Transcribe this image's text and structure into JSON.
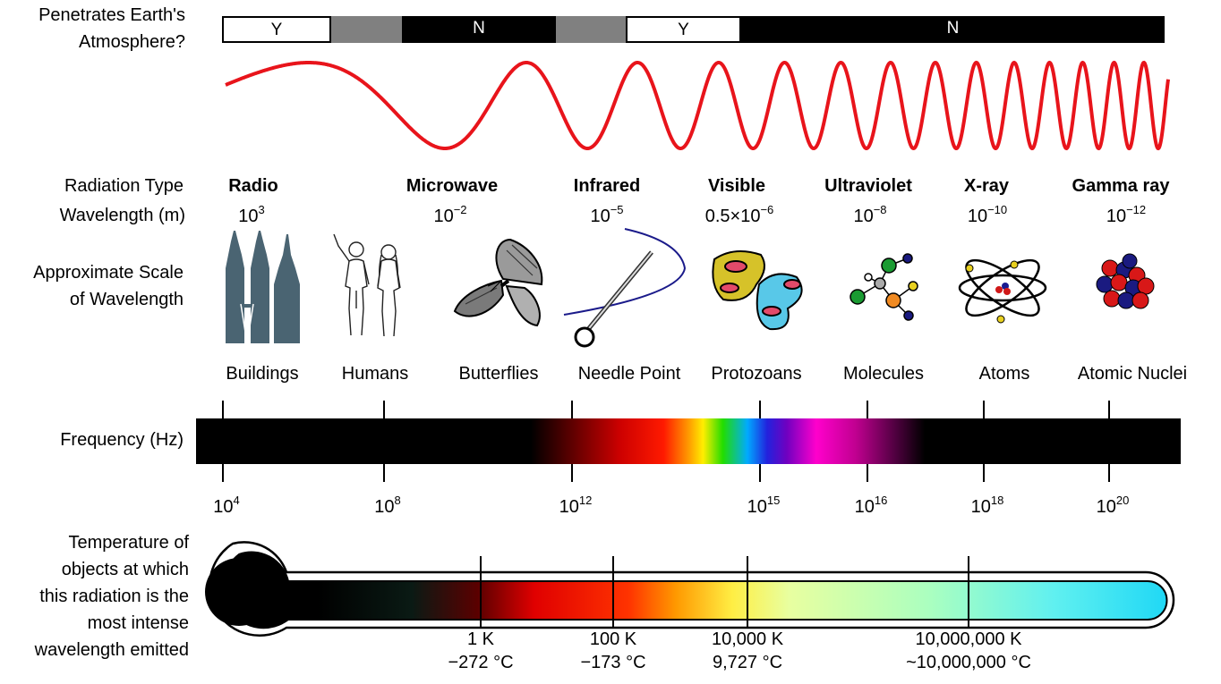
{
  "penetration": {
    "title_line1": "Penetrates Earth's",
    "title_line2": "Atmosphere?",
    "segments": [
      {
        "state": "Y",
        "label": "Y"
      },
      {
        "state": "P",
        "label": ""
      },
      {
        "state": "N",
        "label": "N"
      },
      {
        "state": "P",
        "label": ""
      },
      {
        "state": "Y",
        "label": "Y"
      },
      {
        "state": "N",
        "label": "N"
      }
    ]
  },
  "row_labels": {
    "radiation_type": "Radiation Type",
    "wavelength": "Wavelength (m)",
    "scale_line1": "Approximate Scale",
    "scale_line2": "of Wavelength",
    "frequency": "Frequency (Hz)",
    "temp_line1": "Temperature of",
    "temp_line2": "objects at which",
    "temp_line3": "this radiation is the",
    "temp_line4": "most intense",
    "temp_line5": "wavelength emitted"
  },
  "radiation_types": [
    {
      "name": "Radio",
      "wl_base": "10",
      "wl_exp": "3",
      "scale": "Buildings",
      "icon": "buildings-icon"
    },
    {
      "name": "Microwave",
      "wl_base": "10",
      "wl_exp": "−2",
      "scale": "Humans",
      "icon": "humans-icon"
    },
    {
      "name": "Infrared",
      "wl_base": "10",
      "wl_exp": "−5",
      "scale": "Butterflies",
      "icon": "butterfly-icon"
    },
    {
      "name": "Visible",
      "wl_base": "0.5×10",
      "wl_exp": "−6",
      "scale": "Needle Point",
      "icon": "needle-icon"
    },
    {
      "name": "Ultraviolet",
      "wl_base": "10",
      "wl_exp": "−8",
      "scale": "Protozoans",
      "icon": "protozoa-icon"
    },
    {
      "name": "X-ray",
      "wl_base": "10",
      "wl_exp": "−10",
      "scale": "Molecules",
      "icon": "molecule-icon"
    },
    {
      "name": "Gamma ray",
      "wl_base": "10",
      "wl_exp": "−12",
      "scale": "Atoms",
      "icon": "atom-icon"
    },
    {
      "name": "",
      "wl_base": "",
      "wl_exp": "",
      "scale": "Atomic Nuclei",
      "icon": "nucleus-icon"
    }
  ],
  "frequency_ticks": [
    {
      "base": "10",
      "exp": "4"
    },
    {
      "base": "10",
      "exp": "8"
    },
    {
      "base": "10",
      "exp": "12"
    },
    {
      "base": "10",
      "exp": "15"
    },
    {
      "base": "10",
      "exp": "16"
    },
    {
      "base": "10",
      "exp": "18"
    },
    {
      "base": "10",
      "exp": "20"
    }
  ],
  "temperature_ticks": [
    {
      "kelvin": "1 K",
      "celsius": "−272 °C"
    },
    {
      "kelvin": "100 K",
      "celsius": "−173 °C"
    },
    {
      "kelvin": "10,000 K",
      "celsius": "9,727 °C"
    },
    {
      "kelvin": "10,000,000 K",
      "celsius": "~10,000,000 °C"
    }
  ],
  "colors": {
    "wave": "#e8141b",
    "building": "#4a6472",
    "bar_black": "#000000",
    "thermo_end": "#20d8f5"
  }
}
